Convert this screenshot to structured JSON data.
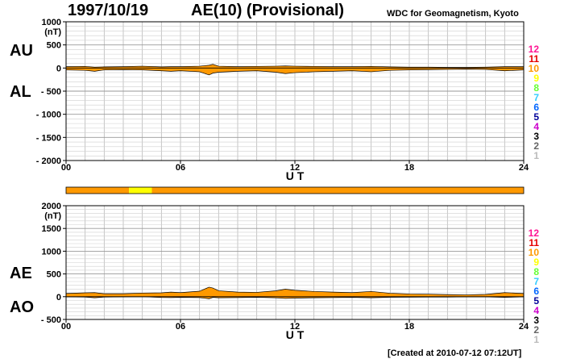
{
  "header": {
    "date": "1997/10/19",
    "title": "AE(10) (Provisional)",
    "source": "WDC for Geomagnetism, Kyoto"
  },
  "footer": {
    "created": "[Created at 2010-07-12 07:12UT]"
  },
  "legend": {
    "items": [
      {
        "label": "12",
        "color": "#ff1493"
      },
      {
        "label": "11",
        "color": "#e60000"
      },
      {
        "label": "10",
        "color": "#ff9900"
      },
      {
        "label": "9",
        "color": "#ffff00"
      },
      {
        "label": "8",
        "color": "#66ff33"
      },
      {
        "label": "7",
        "color": "#33ccff"
      },
      {
        "label": "6",
        "color": "#0066ff"
      },
      {
        "label": "5",
        "color": "#000099"
      },
      {
        "label": "4",
        "color": "#cc00cc"
      },
      {
        "label": "3",
        "color": "#000000"
      },
      {
        "label": "2",
        "color": "#666666"
      },
      {
        "label": "1",
        "color": "#bbbbbb"
      }
    ]
  },
  "station_bar": {
    "segments": [
      {
        "from": 0,
        "to": 3.3,
        "color": "#ff9900"
      },
      {
        "from": 3.3,
        "to": 4.5,
        "color": "#ffff00"
      },
      {
        "from": 4.5,
        "to": 24,
        "color": "#ff9900"
      }
    ]
  },
  "chart_data": [
    {
      "type": "area",
      "panel": "AU/AL",
      "labels": [
        "AU",
        "AL"
      ],
      "xlabel": "U T",
      "ylabel_unit": "(nT)",
      "xlim": [
        0,
        24
      ],
      "ylim": [
        -2000,
        1000
      ],
      "xticks": [
        {
          "v": 0,
          "label": "00"
        },
        {
          "v": 6,
          "label": "06"
        },
        {
          "v": 12,
          "label": "12"
        },
        {
          "v": 18,
          "label": "18"
        },
        {
          "v": 24,
          "label": "24"
        }
      ],
      "yticks": [
        {
          "v": 1000,
          "label": "1000"
        },
        {
          "v": 500,
          "label": "500"
        },
        {
          "v": 0,
          "label": "0"
        },
        {
          "v": -500,
          "label": "- 500"
        },
        {
          "v": -1000,
          "label": "- 1000"
        },
        {
          "v": -1500,
          "label": "- 1500"
        },
        {
          "v": -2000,
          "label": "- 2000"
        }
      ],
      "grid": true,
      "x": [
        0,
        1,
        1.5,
        2,
        3,
        4,
        5,
        5.5,
        6,
        7,
        7.5,
        7.7,
        8,
        9,
        10,
        11,
        11.5,
        12,
        13,
        14,
        15,
        16,
        17,
        18,
        19,
        20,
        21,
        22,
        23,
        24
      ],
      "AU": [
        30,
        35,
        20,
        25,
        30,
        40,
        25,
        30,
        30,
        40,
        60,
        80,
        40,
        30,
        35,
        40,
        45,
        40,
        35,
        30,
        30,
        35,
        25,
        20,
        20,
        15,
        15,
        20,
        30,
        30
      ],
      "AL": [
        -40,
        -50,
        -70,
        -40,
        -35,
        -40,
        -60,
        -70,
        -60,
        -80,
        -150,
        -110,
        -90,
        -70,
        -60,
        -90,
        -120,
        -100,
        -80,
        -70,
        -60,
        -80,
        -50,
        -40,
        -35,
        -30,
        -25,
        -30,
        -60,
        -40
      ]
    },
    {
      "type": "area",
      "panel": "AE/AO",
      "labels": [
        "AE",
        "AO"
      ],
      "xlabel": "U T",
      "ylabel_unit": "(nT)",
      "xlim": [
        0,
        24
      ],
      "ylim": [
        -500,
        2000
      ],
      "xticks": [
        {
          "v": 0,
          "label": "00"
        },
        {
          "v": 6,
          "label": "06"
        },
        {
          "v": 12,
          "label": "12"
        },
        {
          "v": 18,
          "label": "18"
        },
        {
          "v": 24,
          "label": "24"
        }
      ],
      "yticks": [
        {
          "v": 2000,
          "label": "2000"
        },
        {
          "v": 1500,
          "label": "1500"
        },
        {
          "v": 1000,
          "label": "1000"
        },
        {
          "v": 500,
          "label": "500"
        },
        {
          "v": 0,
          "label": "0"
        },
        {
          "v": -500,
          "label": "- 500"
        }
      ],
      "grid": true,
      "x": [
        0,
        1,
        1.5,
        2,
        3,
        4,
        5,
        5.5,
        6,
        7,
        7.5,
        7.7,
        8,
        9,
        10,
        11,
        11.5,
        12,
        13,
        14,
        15,
        16,
        17,
        18,
        19,
        20,
        21,
        22,
        23,
        24
      ],
      "AE": [
        70,
        85,
        90,
        65,
        65,
        80,
        85,
        100,
        90,
        120,
        210,
        190,
        130,
        100,
        95,
        130,
        165,
        140,
        115,
        100,
        90,
        115,
        75,
        60,
        55,
        45,
        40,
        50,
        90,
        70
      ],
      "AO": [
        -5,
        -8,
        -25,
        -8,
        -3,
        0,
        -18,
        -20,
        -15,
        -20,
        -45,
        -15,
        -25,
        -20,
        -13,
        -25,
        -38,
        -30,
        -23,
        -20,
        -15,
        -23,
        -13,
        -10,
        -8,
        -8,
        -5,
        -5,
        -15,
        -5
      ]
    }
  ]
}
